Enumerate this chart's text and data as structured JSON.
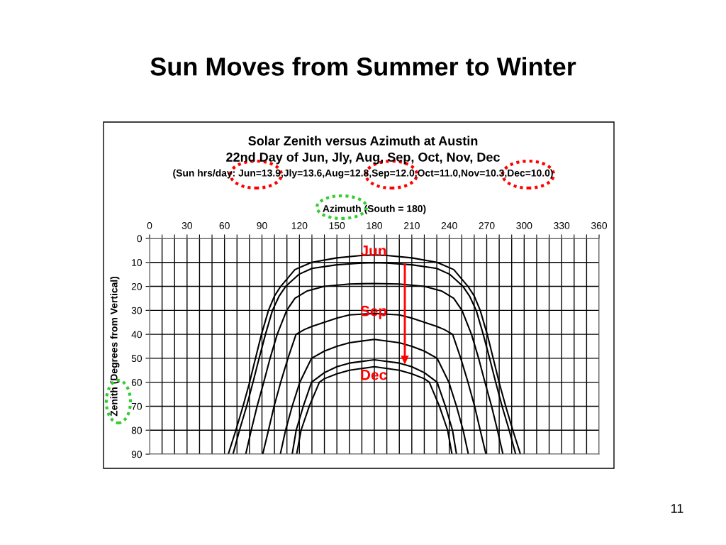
{
  "chart_data": {
    "type": "line",
    "title": "Sun Moves from Summer to Winter",
    "subtitle": "Solar Zenith versus Azimuth at Austin\n22nd Day of Jun, Jly, Aug, Sep, Oct, Nov, Dec",
    "xlabel": "Azimuth (South = 180)",
    "ylabel": "Zenith (Degrees from Vertical)",
    "xlim": [
      0,
      360
    ],
    "xticks": [
      0,
      {
        "value": 10,
        "label": null
      },
      {
        "value": 20,
        "label": null
      },
      30,
      {
        "value": 40,
        "label": null
      },
      {
        "value": 50,
        "label": null
      },
      60,
      {
        "value": 70,
        "label": null
      },
      {
        "value": 80,
        "label": null
      },
      90,
      {
        "value": 100,
        "label": null
      },
      {
        "value": 110,
        "label": null
      },
      120,
      {
        "value": 130,
        "label": null
      },
      {
        "value": 140,
        "label": null
      },
      150,
      {
        "value": 160,
        "label": null
      },
      {
        "value": 170,
        "label": null
      },
      180,
      {
        "value": 190,
        "label": null
      },
      {
        "value": 200,
        "label": null
      },
      210,
      {
        "value": 220,
        "label": null
      },
      {
        "value": 230,
        "label": null
      },
      240,
      {
        "value": 250,
        "label": null
      },
      {
        "value": 260,
        "label": null
      },
      270,
      {
        "value": 280,
        "label": null
      },
      {
        "value": 290,
        "label": null
      },
      300,
      {
        "value": 310,
        "label": null
      },
      {
        "value": 320,
        "label": null
      },
      330,
      {
        "value": 340,
        "label": null
      },
      {
        "value": 350,
        "label": null
      },
      360
    ],
    "ylim": [
      90,
      0
    ],
    "yticks": [
      0,
      10,
      20,
      30,
      40,
      50,
      60,
      70,
      80,
      90
    ],
    "grid": true,
    "marker": "none",
    "line_style": "solid",
    "series": [
      {
        "color": "#000000",
        "x": [
          63,
          69.1,
          74.8,
          80.1,
          84.8,
          89.6,
          95.2,
          100,
          105,
          116.4,
          129.7,
          150,
          170,
          180,
          190,
          210,
          230.3,
          243.6,
          255,
          260,
          264.8,
          270.4,
          275.2,
          279.9,
          285.2,
          290.9,
          297
        ],
        "values": [
          90,
          80,
          70,
          60,
          50,
          40,
          30,
          24,
          20,
          13,
          10,
          8.1,
          7.1,
          6.9,
          7.1,
          8.1,
          10,
          13,
          20,
          24,
          30,
          40,
          50,
          60,
          70,
          80,
          90
        ]
      },
      {
        "color": "#000000",
        "x": [
          66.8,
          72,
          77.7,
          82.8,
          87.7,
          92.8,
          98.4,
          103.8,
          109,
          119.5,
          130,
          150,
          170,
          180,
          190,
          210,
          230,
          240.5,
          251,
          256.2,
          261.6,
          267.2,
          272.3,
          277.2,
          282.3,
          288,
          293.2
        ],
        "values": [
          90,
          80,
          70,
          60,
          50,
          40,
          30,
          24,
          20,
          15,
          12.5,
          11,
          10.3,
          10.1,
          10.3,
          11,
          12.5,
          15,
          20,
          24,
          30,
          40,
          50,
          60,
          70,
          80,
          90
        ]
      },
      {
        "color": "#000000",
        "x": [
          77,
          81.4,
          86.1,
          91.4,
          96.5,
          102.2,
          109.8,
          116.4,
          125.8,
          140,
          160,
          180,
          200,
          220,
          234.2,
          243.6,
          250.2,
          257.8,
          263.5,
          268.6,
          273.9,
          278.6,
          283
        ],
        "values": [
          90,
          80,
          70,
          60,
          50,
          40,
          30,
          25,
          22,
          20,
          19,
          18.8,
          19,
          20,
          22,
          25,
          30,
          40,
          50,
          60,
          70,
          80,
          90
        ]
      },
      {
        "color": "#000000",
        "x": [
          90.6,
          95.2,
          99.7,
          105,
          110.8,
          117.3,
          124,
          130,
          150,
          160,
          180,
          200,
          210,
          230,
          236,
          242.7,
          249.2,
          255,
          260.3,
          264.8,
          269.4
        ],
        "values": [
          90,
          80,
          70,
          60,
          50,
          40,
          38,
          36.7,
          33.2,
          31.9,
          31.3,
          31.9,
          33.2,
          36.7,
          38,
          40,
          50,
          60,
          70,
          80,
          90
        ]
      },
      {
        "color": "#000000",
        "x": [
          104.7,
          108.9,
          114.2,
          120.3,
          125,
          129.7,
          140,
          150,
          160,
          180,
          200,
          210,
          220,
          230.3,
          235,
          239.7,
          245.8,
          251.1,
          255.3
        ],
        "values": [
          90,
          80,
          70,
          60,
          55,
          50,
          47,
          45,
          43.5,
          42.1,
          43.5,
          45,
          47,
          50,
          55,
          60,
          70,
          80,
          90
        ]
      },
      {
        "color": "#000000",
        "x": [
          114.2,
          117.4,
          123.1,
          129.7,
          140,
          150,
          160,
          180,
          200,
          210,
          220,
          230.3,
          236.9,
          242.6,
          245.8
        ],
        "values": [
          90,
          80,
          70,
          60,
          56,
          53.5,
          52,
          50.6,
          52,
          53.5,
          56,
          60,
          70,
          80,
          90
        ]
      },
      {
        "color": "#000000",
        "x": [
          117.8,
          121.3,
          127.9,
          136,
          140,
          150,
          160,
          180,
          200,
          210,
          220,
          224,
          232.1,
          238.7,
          242.2
        ],
        "values": [
          90,
          80,
          70,
          60,
          58.5,
          56.5,
          55,
          53.5,
          55,
          56.5,
          58.5,
          60,
          70,
          80,
          90
        ]
      }
    ],
    "annotations": [
      "(Sun hrs/day: Jun=13.9,Jly=13.6,Aug=12.8,Sep=12.0,Oct=11.0,Nov=10.3,Dec=10.0)",
      "Jun",
      "Sep",
      "Dec",
      "11"
    ]
  }
}
